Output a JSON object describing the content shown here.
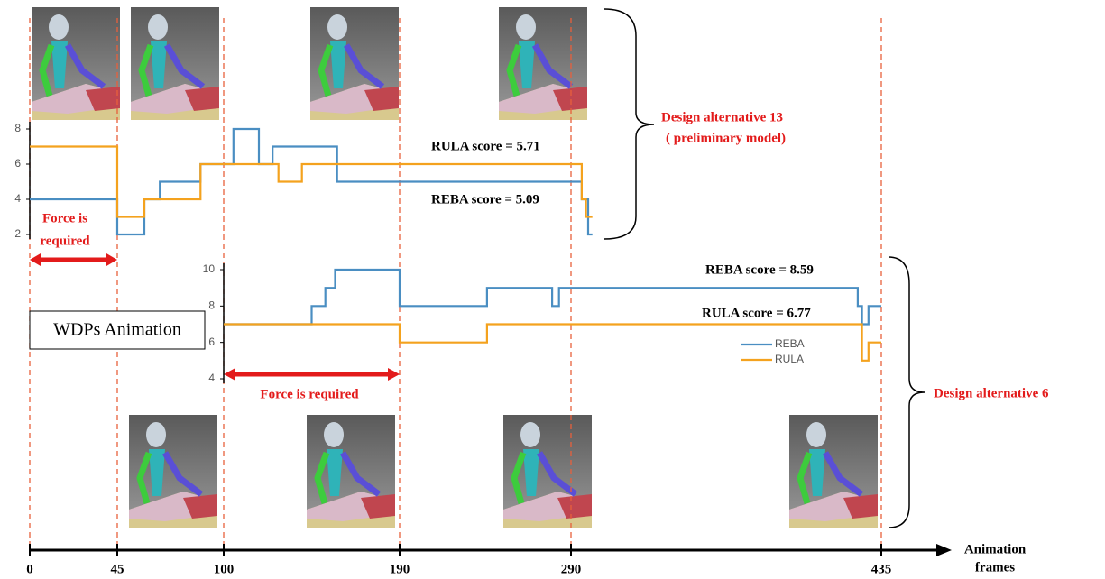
{
  "chart_data": [
    {
      "type": "line",
      "ylim": [
        2,
        8
      ],
      "yticks": [
        2,
        4,
        6,
        8
      ],
      "series": [
        {
          "color": "#4a8ec2",
          "x": [
            0,
            45,
            45,
            59,
            59,
            67,
            67,
            88,
            88,
            105,
            105,
            118,
            118,
            125,
            125,
            158,
            158,
            295,
            295,
            298,
            298,
            300
          ],
          "values": [
            4,
            4,
            2,
            2,
            4,
            4,
            5,
            5,
            6,
            6,
            8,
            8,
            6,
            6,
            7,
            7,
            5,
            5,
            4,
            4,
            2,
            2
          ]
        },
        {
          "color": "#f4a21e",
          "x": [
            0,
            45,
            45,
            59,
            59,
            88,
            88,
            128,
            128,
            140,
            140,
            295,
            295,
            297,
            297,
            300
          ],
          "values": [
            7,
            7,
            3,
            3,
            4,
            4,
            6,
            6,
            5,
            5,
            6,
            6,
            4,
            4,
            3,
            3
          ]
        }
      ],
      "annotations": {
        "rula_score": "RULA score = 5.71",
        "reba_score": "REBA score = 5.09",
        "force": [
          "Force is",
          "required"
        ],
        "design": [
          "Design alternative 13",
          "( preliminary model)"
        ]
      }
    },
    {
      "type": "line",
      "ylim": [
        4,
        10
      ],
      "yticks": [
        4,
        6,
        8,
        10
      ],
      "legend": "right",
      "series": [
        {
          "name": "REBA",
          "color": "#4a8ec2",
          "x": [
            100,
            145,
            145,
            152,
            152,
            157,
            157,
            190,
            190,
            241,
            241,
            279,
            279,
            283,
            283,
            424,
            424,
            426,
            426,
            429,
            429,
            435
          ],
          "values": [
            7,
            7,
            8,
            8,
            9,
            9,
            10,
            10,
            8,
            8,
            9,
            9,
            8,
            8,
            9,
            9,
            8,
            8,
            7,
            7,
            8,
            8
          ]
        },
        {
          "name": "RULA",
          "color": "#f4a21e",
          "x": [
            100,
            190,
            190,
            241,
            241,
            426,
            426,
            429,
            429,
            435
          ],
          "values": [
            7,
            7,
            6,
            6,
            7,
            7,
            5,
            5,
            6,
            6
          ]
        }
      ],
      "annotations": {
        "reba_score": "REBA score = 8.59",
        "rula_score": "RULA score = 6.77",
        "force": "Force is required",
        "design": "Design alternative 6"
      }
    }
  ],
  "timeline": {
    "label": "WDPs Animation",
    "axis_label": [
      "Animation",
      "frames"
    ],
    "ticks": [
      0,
      45,
      100,
      190,
      290,
      435
    ]
  }
}
